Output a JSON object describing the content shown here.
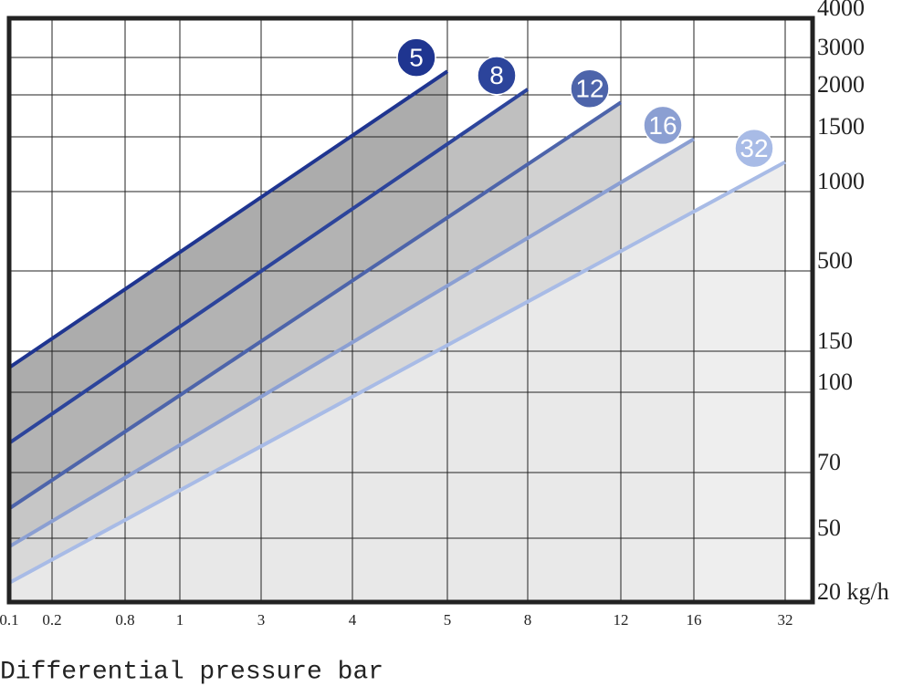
{
  "chart_data": {
    "type": "line",
    "x_label": "Differential pressure bar",
    "xticks": [
      {
        "value": 0.1,
        "label": "0.1"
      },
      {
        "value": 0.2,
        "label": "0.2"
      },
      {
        "value": 0.8,
        "label": "0.8"
      },
      1,
      3,
      4,
      5,
      8,
      12,
      16,
      32
    ],
    "xlim": [
      0.1,
      32
    ],
    "yticks": [
      4000,
      3000,
      2000,
      1500,
      1000,
      500,
      150,
      100,
      70,
      50,
      {
        "value": 20,
        "label": "20 kg/h"
      }
    ],
    "ylim": [
      20,
      4000
    ],
    "grid": true,
    "series": [
      {
        "name": "5",
        "color": "#1f3590",
        "fill": "#9d9d9d",
        "x": [
          0.1,
          5
        ],
        "values": [
          130,
          2630
        ]
      },
      {
        "name": "8",
        "color": "#2c449b",
        "fill": "#b4b4b4",
        "x": [
          0.1,
          8
        ],
        "values": [
          81,
          2150
        ]
      },
      {
        "name": "12",
        "color": "#4d64aa",
        "fill": "#c9c9c9",
        "x": [
          0.1,
          12
        ],
        "values": [
          59,
          1910
        ]
      },
      {
        "name": "16",
        "color": "#8b9fd2",
        "fill": "#dadada",
        "x": [
          0.1,
          16
        ],
        "values": [
          46,
          1480
        ]
      },
      {
        "name": "32",
        "color": "#a8bbe6",
        "fill": "#ebebeb",
        "x": [
          0.1,
          32
        ],
        "values": [
          29,
          1270
        ]
      }
    ]
  }
}
